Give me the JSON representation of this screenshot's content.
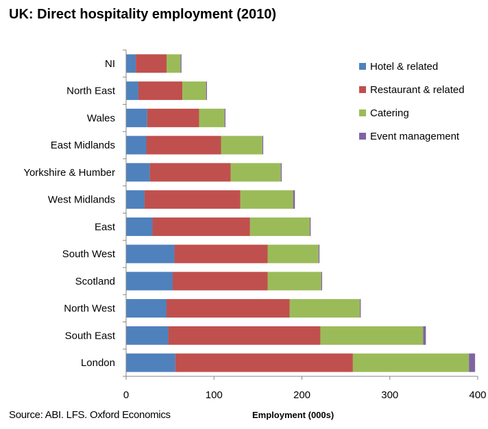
{
  "chart_data": {
    "type": "bar",
    "orientation": "horizontal",
    "stacked": true,
    "title": "UK: Direct hospitality employment (2010)",
    "xlabel": "Employment (000s)",
    "ylabel": "",
    "xlim": [
      0,
      400
    ],
    "xticks": [
      "0",
      "100",
      "200",
      "300",
      "400"
    ],
    "grid": false,
    "legend_position": "right",
    "categories": [
      "NI",
      "North East",
      "Wales",
      "East Midlands",
      "Yorkshire & Humber",
      "West Midlands",
      "East",
      "South West",
      "Scotland",
      "North West",
      "South East",
      "London"
    ],
    "series": [
      {
        "name": "Hotel & related",
        "color": "#4f81bd",
        "values": [
          11,
          14,
          24,
          23,
          27,
          21,
          30,
          55,
          53,
          46,
          48,
          56
        ]
      },
      {
        "name": "Restaurant & related",
        "color": "#c0504d",
        "values": [
          35,
          50,
          59,
          85,
          92,
          109,
          111,
          106,
          108,
          140,
          173,
          202
        ]
      },
      {
        "name": "Catering",
        "color": "#9bbb59",
        "values": [
          16,
          27,
          29,
          47,
          57,
          60,
          68,
          58,
          61,
          80,
          117,
          132
        ]
      },
      {
        "name": "Event management",
        "color": "#8064a2",
        "values": [
          1,
          1,
          1,
          1,
          1,
          2,
          1,
          1,
          1,
          1,
          3,
          7
        ]
      }
    ]
  },
  "source_note": "Source: ABI. LFS. Oxford Economics"
}
